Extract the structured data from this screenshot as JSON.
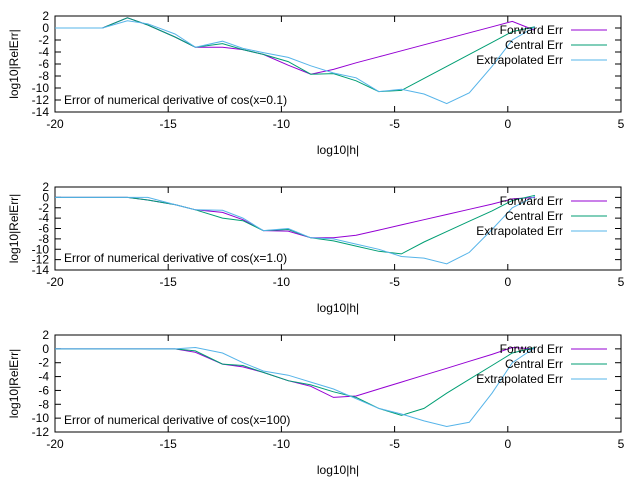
{
  "chart_data": [
    {
      "type": "line",
      "title": "",
      "annotation": "Error of numerical derivative of cos(x=0.1)",
      "xlabel": "log10|h|",
      "ylabel": "log10|RelErr|",
      "xlim": [
        -20,
        5
      ],
      "ylim": [
        -14,
        2
      ],
      "xticks": [
        -20,
        -15,
        -10,
        -5,
        0,
        5
      ],
      "yticks": [
        -14,
        -12,
        -10,
        -8,
        -6,
        -4,
        -2,
        0,
        2
      ],
      "grid": false,
      "legend_position": "top-right",
      "series": [
        {
          "name": "Forward Err",
          "color": "#9400d3",
          "x": [
            -20,
            -17.9,
            -16.8,
            -15.9,
            -14.7,
            -13.8,
            -12.6,
            -11.7,
            -10.8,
            -9.7,
            -8.7,
            -7.7,
            -6.7,
            -5.7,
            -4.7,
            -3.7,
            -2.7,
            -1.7,
            -0.7,
            0.2,
            1.2
          ],
          "y": [
            0,
            0,
            1.7,
            0.5,
            -1.5,
            -3.2,
            -3.2,
            -3.6,
            -4.4,
            -6.2,
            -7.7,
            -6.9,
            -5.8,
            -4.8,
            -3.8,
            -2.8,
            -1.8,
            -0.8,
            0.2,
            1.1,
            -0.4
          ]
        },
        {
          "name": "Central Err",
          "color": "#009e73",
          "x": [
            -20,
            -17.9,
            -16.8,
            -15.9,
            -14.7,
            -13.8,
            -12.6,
            -11.7,
            -10.8,
            -9.7,
            -8.7,
            -7.7,
            -6.7,
            -5.7,
            -4.7,
            -3.7,
            -2.7,
            -1.7,
            -0.7,
            0.2,
            1.2
          ],
          "y": [
            0,
            0,
            1.7,
            0.5,
            -1.5,
            -3.2,
            -2.6,
            -3.6,
            -4.4,
            -5.6,
            -7.7,
            -7.6,
            -8.8,
            -10.6,
            -10.4,
            -8.4,
            -6.4,
            -4.4,
            -2.4,
            -0.6,
            0.2
          ]
        },
        {
          "name": "Extrapolated Err",
          "color": "#56b4e9",
          "x": [
            -20,
            -17.9,
            -16.8,
            -15.9,
            -14.7,
            -13.8,
            -12.6,
            -11.7,
            -10.8,
            -9.7,
            -8.7,
            -7.7,
            -6.7,
            -5.7,
            -4.7,
            -3.7,
            -2.7,
            -1.7,
            -0.7,
            0.2,
            1.2
          ],
          "y": [
            0,
            0,
            1.2,
            0.7,
            -1.0,
            -3.2,
            -2.2,
            -3.4,
            -4.1,
            -4.9,
            -6.3,
            -7.5,
            -8.3,
            -10.6,
            -10.2,
            -11.0,
            -12.6,
            -10.8,
            -6.4,
            -2.0,
            0.2
          ]
        }
      ]
    },
    {
      "type": "line",
      "title": "",
      "annotation": "Error of numerical derivative of cos(x=1.0)",
      "xlabel": "log10|h|",
      "ylabel": "log10|RelErr|",
      "xlim": [
        -20,
        5
      ],
      "ylim": [
        -14,
        2
      ],
      "xticks": [
        -20,
        -15,
        -10,
        -5,
        0,
        5
      ],
      "yticks": [
        -14,
        -12,
        -10,
        -8,
        -6,
        -4,
        -2,
        0,
        2
      ],
      "grid": false,
      "legend_position": "top-right",
      "series": [
        {
          "name": "Forward Err",
          "color": "#9400d3",
          "x": [
            -20,
            -17.9,
            -16.8,
            -15.9,
            -14.7,
            -13.8,
            -12.6,
            -11.7,
            -10.8,
            -9.7,
            -8.7,
            -7.7,
            -6.7,
            -5.7,
            -4.7,
            -3.7,
            -2.7,
            -1.7,
            -0.7,
            0.2,
            1.2
          ],
          "y": [
            0,
            0,
            0,
            -0.5,
            -1.4,
            -2.4,
            -2.9,
            -4.3,
            -6.4,
            -6.5,
            -7.8,
            -7.8,
            -7.3,
            -6.3,
            -5.3,
            -4.3,
            -3.3,
            -2.3,
            -1.3,
            -0.3,
            0
          ]
        },
        {
          "name": "Central Err",
          "color": "#009e73",
          "x": [
            -20,
            -17.9,
            -16.8,
            -15.9,
            -14.7,
            -13.8,
            -12.6,
            -11.7,
            -10.8,
            -9.7,
            -8.7,
            -7.7,
            -6.7,
            -5.7,
            -4.7,
            -3.7,
            -2.7,
            -1.7,
            -0.7,
            0.2,
            1.2
          ],
          "y": [
            0,
            0,
            0,
            -0.5,
            -1.4,
            -2.4,
            -4.0,
            -4.5,
            -6.4,
            -6.2,
            -7.8,
            -8.4,
            -9.4,
            -10.4,
            -10.9,
            -8.6,
            -6.6,
            -4.6,
            -2.6,
            -0.6,
            0.4
          ]
        },
        {
          "name": "Extrapolated Err",
          "color": "#56b4e9",
          "x": [
            -20,
            -17.9,
            -16.8,
            -15.9,
            -14.7,
            -13.8,
            -12.6,
            -11.7,
            -10.8,
            -9.7,
            -8.7,
            -7.7,
            -6.7,
            -5.7,
            -4.7,
            -3.7,
            -2.7,
            -1.7,
            -0.7,
            0.2,
            1.2
          ],
          "y": [
            0,
            0,
            0,
            0,
            -1.4,
            -2.4,
            -2.5,
            -4.0,
            -6.4,
            -6.0,
            -7.8,
            -8.0,
            -9.0,
            -10.0,
            -11.4,
            -11.7,
            -12.8,
            -10.6,
            -6.2,
            -2.0,
            0.2
          ]
        }
      ]
    },
    {
      "type": "line",
      "title": "",
      "annotation": "Error of numerical derivative of cos(x=100)",
      "xlabel": "log10|h|",
      "ylabel": "log10|RelErr|",
      "xlim": [
        -20,
        5
      ],
      "ylim": [
        -12,
        2
      ],
      "xticks": [
        -20,
        -15,
        -10,
        -5,
        0,
        5
      ],
      "yticks": [
        -12,
        -10,
        -8,
        -6,
        -4,
        -2,
        0,
        2
      ],
      "grid": false,
      "legend_position": "top-right",
      "series": [
        {
          "name": "Forward Err",
          "color": "#9400d3",
          "x": [
            -20,
            -17.9,
            -16.8,
            -15.9,
            -14.7,
            -13.8,
            -12.6,
            -11.7,
            -10.8,
            -9.7,
            -8.7,
            -7.7,
            -6.7,
            -5.7,
            -4.7,
            -3.7,
            -2.7,
            -1.7,
            -0.7,
            0.2,
            1.2
          ],
          "y": [
            0,
            0,
            0,
            0,
            0,
            -0.5,
            -2.2,
            -2.6,
            -3.4,
            -4.6,
            -5.4,
            -7.0,
            -6.8,
            -5.8,
            -4.8,
            -3.8,
            -2.8,
            -1.8,
            -0.8,
            0.2,
            0
          ]
        },
        {
          "name": "Central Err",
          "color": "#009e73",
          "x": [
            -20,
            -17.9,
            -16.8,
            -15.9,
            -14.7,
            -13.8,
            -12.6,
            -11.7,
            -10.8,
            -9.7,
            -8.7,
            -7.7,
            -6.7,
            -5.7,
            -4.7,
            -3.7,
            -2.7,
            -1.7,
            -0.7,
            0.2,
            1.2
          ],
          "y": [
            0,
            0,
            0,
            0,
            0,
            -0.3,
            -2.2,
            -2.4,
            -3.4,
            -4.6,
            -5.2,
            -6.2,
            -7.0,
            -8.6,
            -9.6,
            -8.6,
            -6.4,
            -4.4,
            -2.4,
            -0.6,
            0.2
          ]
        },
        {
          "name": "Extrapolated Err",
          "color": "#56b4e9",
          "x": [
            -20,
            -17.9,
            -16.8,
            -15.9,
            -14.7,
            -13.8,
            -12.6,
            -11.7,
            -10.8,
            -9.7,
            -8.7,
            -7.7,
            -6.7,
            -5.7,
            -4.7,
            -3.7,
            -2.7,
            -1.7,
            -0.7,
            0.2,
            1.2
          ],
          "y": [
            0,
            0,
            0,
            0,
            0,
            0.2,
            -0.6,
            -2.0,
            -3.2,
            -3.8,
            -4.8,
            -5.8,
            -7.2,
            -8.6,
            -9.4,
            -10.4,
            -11.2,
            -10.6,
            -6.4,
            -2.0,
            0.2
          ]
        }
      ]
    }
  ]
}
